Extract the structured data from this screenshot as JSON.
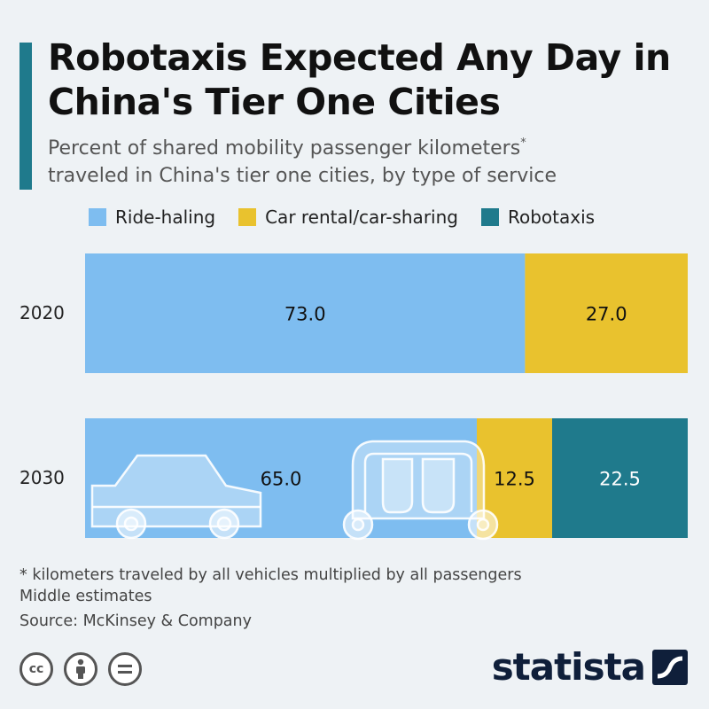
{
  "header": {
    "title": "Robotaxis Expected Any Day in China's Tier One Cities",
    "subtitle_line1": "Percent of shared mobility passenger kilometers",
    "subtitle_mark": "*",
    "subtitle_line2": "traveled in China's tier one cities, by type of service"
  },
  "colors": {
    "accent": "#1f7a8c",
    "ride_hailing": "#7ebdf0",
    "car_rental": "#e9c22e",
    "robotaxis": "#1f7a8c"
  },
  "chart_data": {
    "type": "bar",
    "orientation": "horizontal",
    "stacked": true,
    "categories": [
      "2020",
      "2030"
    ],
    "series": [
      {
        "name": "Ride-haling",
        "values": [
          73.0,
          65.0
        ],
        "labels": [
          "73.0",
          "65.0"
        ],
        "color": "#7ebdf0"
      },
      {
        "name": "Car rental/car-sharing",
        "values": [
          27.0,
          12.5
        ],
        "labels": [
          "27.0",
          "12.5"
        ],
        "color": "#e9c22e"
      },
      {
        "name": "Robotaxis",
        "values": [
          0,
          22.5
        ],
        "labels": [
          "",
          "22.5"
        ],
        "color": "#1f7a8c"
      }
    ],
    "xlim": [
      0,
      100
    ],
    "legend_position": "top"
  },
  "footer": {
    "note1": "* kilometers traveled by all vehicles multiplied by all passengers",
    "note2": "Middle estimates",
    "source": "Source: McKinsey & Company",
    "brand": "statista",
    "license_icons": [
      "cc-icon",
      "by-icon",
      "nd-icon"
    ]
  }
}
